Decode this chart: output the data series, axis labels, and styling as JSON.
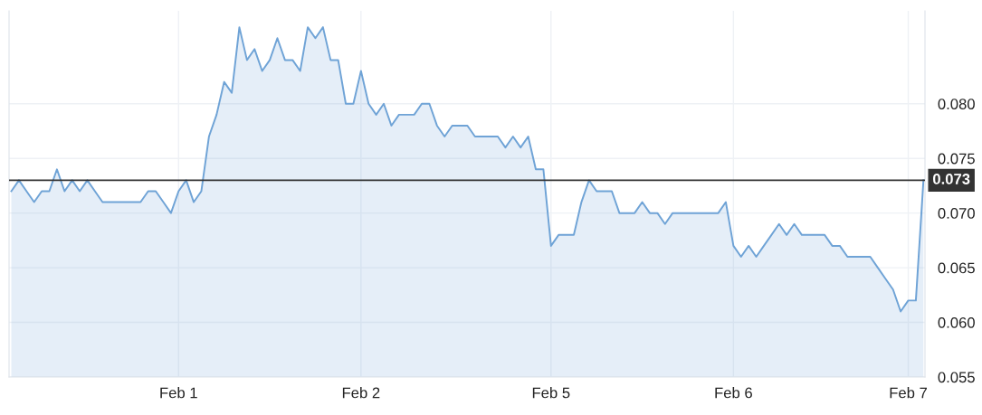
{
  "chart_data": {
    "type": "area",
    "categories": [
      null,
      null,
      null,
      null,
      null,
      null,
      null,
      null,
      null,
      null,
      null,
      null,
      null,
      null,
      null,
      null,
      null,
      null,
      null,
      null,
      null,
      null,
      "Feb 1",
      null,
      null,
      null,
      null,
      null,
      null,
      null,
      null,
      null,
      null,
      null,
      null,
      null,
      null,
      null,
      null,
      null,
      null,
      null,
      null,
      null,
      null,
      null,
      "Feb 2",
      null,
      null,
      null,
      null,
      null,
      null,
      null,
      null,
      null,
      null,
      null,
      null,
      null,
      null,
      null,
      null,
      null,
      null,
      null,
      null,
      null,
      null,
      null,
      null,
      "Feb 5",
      null,
      null,
      null,
      null,
      null,
      null,
      null,
      null,
      null,
      null,
      null,
      null,
      null,
      null,
      null,
      null,
      null,
      null,
      null,
      null,
      null,
      null,
      null,
      "Feb 6",
      null,
      null,
      null,
      null,
      null,
      null,
      null,
      null,
      null,
      null,
      null,
      null,
      null,
      null,
      null,
      null,
      null,
      null,
      null,
      null,
      null,
      null,
      "Feb 7",
      null,
      null
    ],
    "series": [
      {
        "color": "#6fa3d6",
        "values": [
          0.072,
          0.073,
          0.072,
          0.071,
          0.072,
          0.072,
          0.074,
          0.072,
          0.073,
          0.072,
          0.073,
          0.072,
          0.071,
          0.071,
          0.071,
          0.071,
          0.071,
          0.071,
          0.072,
          0.072,
          0.071,
          0.07,
          0.072,
          0.073,
          0.071,
          0.072,
          0.077,
          0.079,
          0.082,
          0.081,
          0.087,
          0.084,
          0.085,
          0.083,
          0.084,
          0.086,
          0.084,
          0.084,
          0.083,
          0.087,
          0.086,
          0.087,
          0.084,
          0.084,
          0.08,
          0.08,
          0.083,
          0.08,
          0.079,
          0.08,
          0.078,
          0.079,
          0.079,
          0.079,
          0.08,
          0.08,
          0.078,
          0.077,
          0.078,
          0.078,
          0.078,
          0.077,
          0.077,
          0.077,
          0.077,
          0.076,
          0.077,
          0.076,
          0.077,
          0.074,
          0.074,
          0.067,
          0.068,
          0.068,
          0.068,
          0.071,
          0.073,
          0.072,
          0.072,
          0.072,
          0.07,
          0.07,
          0.07,
          0.071,
          0.07,
          0.07,
          0.069,
          0.07,
          0.07,
          0.07,
          0.07,
          0.07,
          0.07,
          0.07,
          0.071,
          0.067,
          0.066,
          0.067,
          0.066,
          0.067,
          0.068,
          0.069,
          0.068,
          0.069,
          0.068,
          0.068,
          0.068,
          0.068,
          0.067,
          0.067,
          0.066,
          0.066,
          0.066,
          0.066,
          0.065,
          0.064,
          0.063,
          0.061,
          0.062,
          0.062,
          0.073
        ]
      }
    ],
    "ylim": [
      0.055,
      0.0885
    ],
    "yticks": [
      0.055,
      {
        "value": 0.06,
        "label": "0.060"
      },
      0.065,
      {
        "value": 0.07,
        "label": "0.070"
      },
      0.075,
      {
        "value": 0.08,
        "label": "0.080"
      }
    ],
    "ref_lines": [
      {
        "axis": "y",
        "value": 0.073,
        "label": "0.073",
        "color": "#333333"
      }
    ],
    "grid": true
  }
}
